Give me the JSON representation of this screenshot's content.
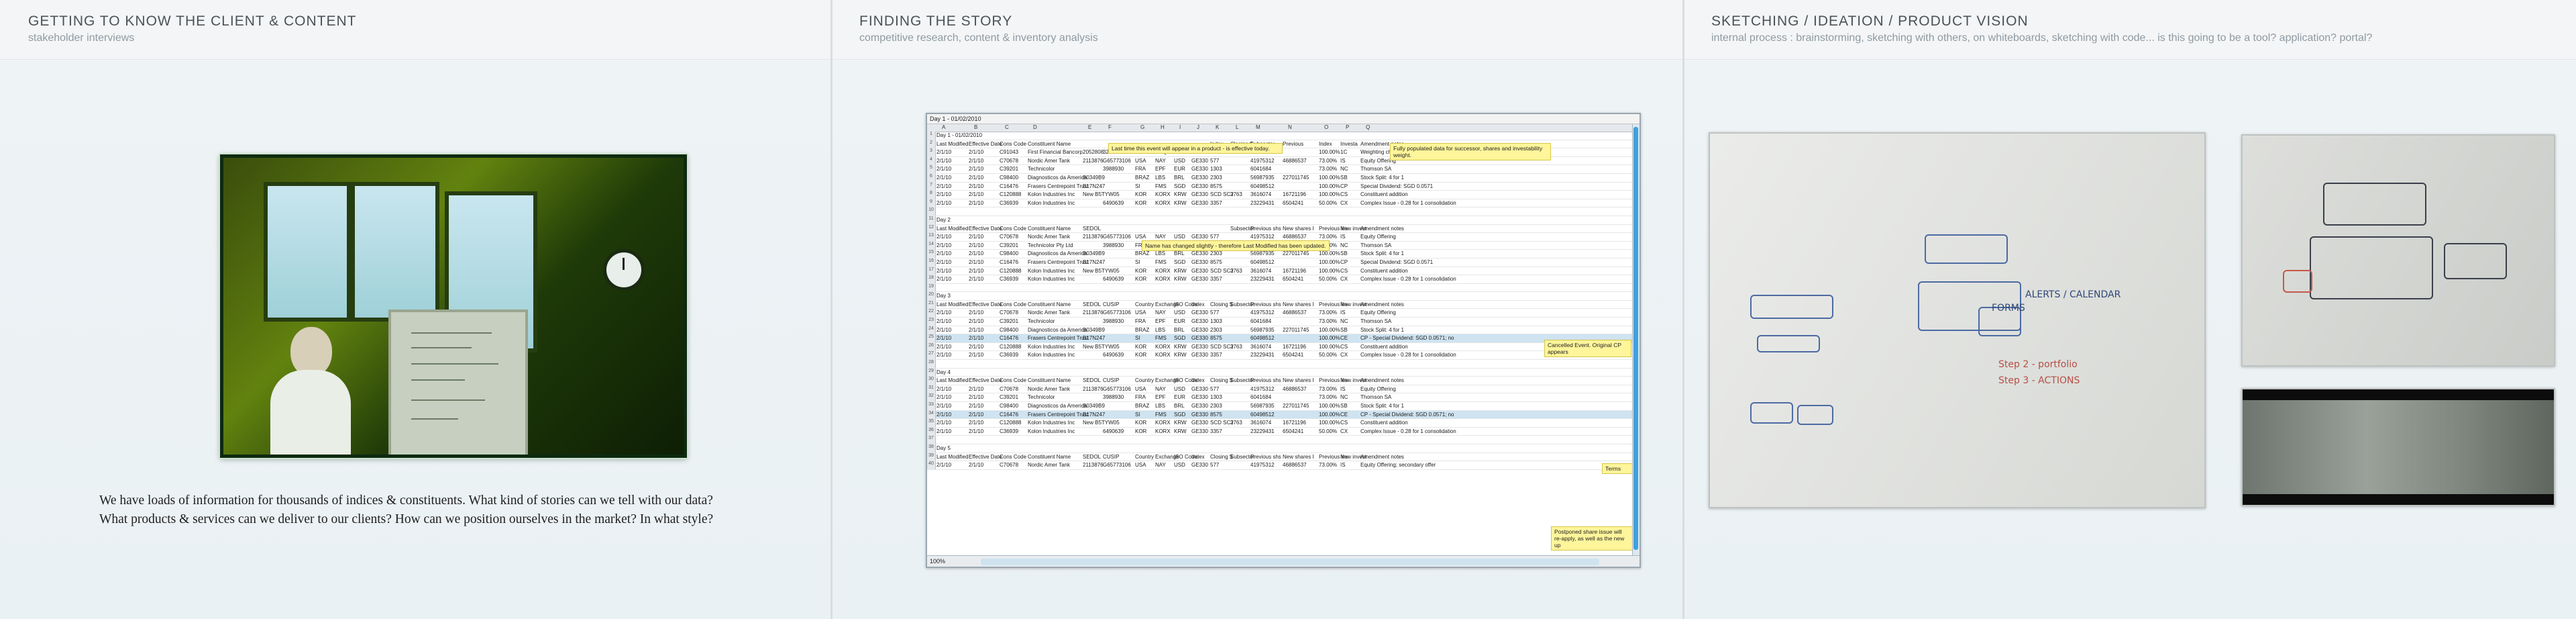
{
  "panels": [
    {
      "title": "GETTING TO KNOW THE CLIENT & CONTENT",
      "subtitle": "stakeholder interviews",
      "caption_lines": [
        "We have loads of information for thousands of indices & constituents. What kind of stories can we tell with our data?",
        "What products & services can we deliver to our clients? How can we position ourselves in the market? In what style?"
      ]
    },
    {
      "title": "FINDING THE STORY",
      "subtitle": "competitive research, content & inventory analysis"
    },
    {
      "title": "SKETCHING / IDEATION / PRODUCT VISION",
      "subtitle": "internal process : brainstorming, sketching with others, on whiteboards, sketching with code... is this going to be a tool? application? portal?"
    }
  ],
  "spreadsheet": {
    "window_title": "Day 1 - 01/02/2010",
    "columns": [
      "A",
      "B",
      "C",
      "D",
      "E",
      "F",
      "G",
      "H",
      "I",
      "J",
      "K",
      "L",
      "M",
      "N",
      "O",
      "P",
      "Q"
    ],
    "status": "100%",
    "notes": [
      "Last time this event will appear in a product - is effective today.",
      "Fully populated data for successor, shares and investability weight.",
      "Name has changed slightly - therefore Last Modified has been updated.",
      "Cancelled Event. Original CP appears",
      "Terms",
      "Postponed share issue will re-apply, as well as the new up"
    ],
    "rows": [
      {
        "n": "1",
        "cells": [
          "Day 1 - 01/02/2010"
        ]
      },
      {
        "n": "2",
        "cells": [
          "Last Modified",
          "Effective Date",
          "Cons Code",
          "Constituent Name",
          "",
          "",
          "",
          "",
          "",
          "",
          "Index",
          "Closing $",
          "Subsector",
          "Previous",
          "Index",
          "Investa",
          "Amendment notes"
        ]
      },
      {
        "n": "3",
        "cells": [
          "2/1/10",
          "2/1/10",
          "C91043",
          "First Financial Bancorp",
          "2052808",
          "320209109",
          "USA",
          "NAQ",
          "USD",
          "GE330",
          "103",
          "8.2525+09",
          "",
          "",
          "100.00%",
          "1C",
          "Weighting change"
        ]
      },
      {
        "n": "4",
        "cells": [
          "2/1/10",
          "2/1/10",
          "C70678",
          "Nordic Amer Tank",
          "2113876",
          "G65773106",
          "USA",
          "NAY",
          "USD",
          "GE330",
          "577",
          "",
          "41975312",
          "46886537",
          "73.00%",
          "IS",
          "Equity Offering"
        ]
      },
      {
        "n": "5",
        "cells": [
          "2/1/10",
          "2/1/10",
          "C39201",
          "Technicolor",
          "",
          "3988930",
          "FRA",
          "EPF",
          "EUR",
          "GE330",
          "1303",
          "",
          "6041684",
          "",
          "73.00%",
          "NC",
          "Thomson SA"
        ]
      },
      {
        "n": "6",
        "cells": [
          "2/1/10",
          "2/1/10",
          "C98400",
          "Diagnosticos da America",
          "B0349B9",
          "",
          "BRAZ",
          "LBS",
          "BRL",
          "GE330",
          "2303",
          "",
          "56987935",
          "227011745",
          "100.00%",
          "SB",
          "Stock Split: 4 for 1"
        ]
      },
      {
        "n": "7",
        "cells": [
          "2/1/10",
          "2/1/10",
          "C16476",
          "Frasers Centrepoint Trust",
          "B17N247",
          "",
          "SI",
          "FMS",
          "SGD",
          "GE330",
          "8575",
          "",
          "60498512",
          "",
          "100.00%",
          "CP",
          "Special Dividend: SGD 0.0571"
        ]
      },
      {
        "n": "8",
        "cells": [
          "2/1/10",
          "2/1/10",
          "C120888",
          "Kolon Industries Inc",
          "New B5TYW05",
          "",
          "KOR",
          "KORX",
          "KRW",
          "GE330",
          "SCD SC2",
          "3763",
          "3616074",
          "16721196",
          "100.00%",
          "CS",
          "Constituent addition"
        ]
      },
      {
        "n": "9",
        "cells": [
          "2/1/10",
          "2/1/10",
          "C36939",
          "Kolon Industries Inc",
          "",
          "6490639",
          "KOR",
          "KORX",
          "KRW",
          "GE330",
          "3357",
          "",
          "23229431",
          "6504241",
          "50.00%",
          "CX",
          "Complex Issue - 0.28 for 1 consolidation"
        ]
      },
      {
        "n": "10",
        "cells": []
      },
      {
        "n": "11",
        "cells": [
          "Day 2"
        ]
      },
      {
        "n": "12",
        "cells": [
          "Last Modified",
          "Effective Date",
          "Cons Code",
          "Constituent Name",
          "SEDOL",
          "",
          "",
          "",
          "",
          "",
          "",
          "Subsector",
          "Previous shs",
          "New shares I",
          "Previous inv",
          "New invest",
          "Amendment notes"
        ]
      },
      {
        "n": "13",
        "cells": [
          "2/1/10",
          "2/1/10",
          "C70678",
          "Nordic Amer Tank",
          "2113876",
          "G65773106",
          "USA",
          "NAY",
          "USD",
          "GE330",
          "577",
          "",
          "41975312",
          "46886537",
          "73.00%",
          "IS",
          "Equity Offering"
        ]
      },
      {
        "n": "14",
        "cells": [
          "2/1/10",
          "2/1/10",
          "C39201",
          "Technicolor Pty Ltd",
          "",
          "3988930",
          "FRA",
          "EPF",
          "EUR",
          "GE330",
          "1303",
          "",
          "6041684",
          "",
          "73.00%",
          "NC",
          "Thomson SA"
        ]
      },
      {
        "n": "15",
        "cells": [
          "2/1/10",
          "2/1/10",
          "C98400",
          "Diagnosticos da America",
          "B0349B9",
          "",
          "BRAZ",
          "LBS",
          "BRL",
          "GE330",
          "2303",
          "",
          "56987935",
          "227011745",
          "100.00%",
          "SB",
          "Stock Split: 4 for 1"
        ]
      },
      {
        "n": "16",
        "cells": [
          "2/1/10",
          "2/1/10",
          "C16476",
          "Frasers Centrepoint Trust",
          "B17N247",
          "",
          "SI",
          "FMS",
          "SGD",
          "GE330",
          "8575",
          "",
          "60498512",
          "",
          "100.00%",
          "CP",
          "Special Dividend: SGD 0.0571"
        ]
      },
      {
        "n": "17",
        "cells": [
          "2/1/10",
          "2/1/10",
          "C120888",
          "Kolon Industries Inc",
          "New B5TYW05",
          "",
          "KOR",
          "KORX",
          "KRW",
          "GE330",
          "SCD SC2",
          "3763",
          "3616074",
          "16721196",
          "100.00%",
          "CS",
          "Constituent addition"
        ]
      },
      {
        "n": "18",
        "cells": [
          "2/1/10",
          "2/1/10",
          "C36939",
          "Kolon Industries Inc",
          "",
          "6490639",
          "KOR",
          "KORX",
          "KRW",
          "GE330",
          "3357",
          "",
          "23229431",
          "6504241",
          "50.00%",
          "CX",
          "Complex Issue - 0.28 for 1 consolidation"
        ]
      },
      {
        "n": "19",
        "cells": []
      },
      {
        "n": "20",
        "cells": [
          "Day 3"
        ]
      },
      {
        "n": "21",
        "cells": [
          "Last Modified",
          "Effective Date",
          "Cons Code",
          "Constituent Name",
          "SEDOL",
          "CUSIP",
          "Country",
          "Exchange",
          "ISO Code",
          "Index",
          "Closing $",
          "Subsector",
          "Previous shs",
          "New shares I",
          "Previous inv",
          "New invest",
          "Amendment notes"
        ]
      },
      {
        "n": "22",
        "cells": [
          "2/1/10",
          "2/1/10",
          "C70678",
          "Nordic Amer Tank",
          "2113876",
          "G65773106",
          "USA",
          "NAY",
          "USD",
          "GE330",
          "577",
          "",
          "41975312",
          "46886537",
          "73.00%",
          "IS",
          "Equity Offering"
        ]
      },
      {
        "n": "23",
        "cells": [
          "2/1/10",
          "2/1/10",
          "C39201",
          "Technicolor",
          "",
          "3988930",
          "FRA",
          "EPF",
          "EUR",
          "GE330",
          "1303",
          "",
          "6041684",
          "",
          "73.00%",
          "NC",
          "Thomson SA"
        ]
      },
      {
        "n": "24",
        "cells": [
          "2/1/10",
          "2/1/10",
          "C98400",
          "Diagnosticos da America",
          "B0349B9",
          "",
          "BRAZ",
          "LBS",
          "BRL",
          "GE330",
          "2303",
          "",
          "56987935",
          "227011745",
          "100.00%",
          "SB",
          "Stock Split: 4 for 1"
        ]
      },
      {
        "n": "25",
        "hl": true,
        "cells": [
          "2/1/10",
          "2/1/10",
          "C16476",
          "Frasers Centrepoint Trust",
          "B17N247",
          "",
          "SI",
          "FMS",
          "SGD",
          "GE330",
          "8575",
          "",
          "60498512",
          "",
          "100.00%",
          "CE",
          "CP - Special Dividend: SGD 0.0571; no"
        ]
      },
      {
        "n": "26",
        "cells": [
          "2/1/10",
          "2/1/10",
          "C120888",
          "Kolon Industries Inc",
          "New B5TYW05",
          "",
          "KOR",
          "KORX",
          "KRW",
          "GE330",
          "SCD SC2",
          "3763",
          "3616074",
          "16721196",
          "100.00%",
          "CS",
          "Constituent addition"
        ]
      },
      {
        "n": "27",
        "cells": [
          "2/1/10",
          "2/1/10",
          "C36939",
          "Kolon Industries Inc",
          "",
          "6490639",
          "KOR",
          "KORX",
          "KRW",
          "GE330",
          "3357",
          "",
          "23229431",
          "6504241",
          "50.00%",
          "CX",
          "Complex Issue - 0.28 for 1 consolidation"
        ]
      },
      {
        "n": "28",
        "cells": []
      },
      {
        "n": "29",
        "cells": [
          "Day 4"
        ]
      },
      {
        "n": "30",
        "cells": [
          "Last Modified",
          "Effective Date",
          "Cons Code",
          "Constituent Name",
          "SEDOL",
          "CUSIP",
          "Country",
          "Exchange",
          "ISO Code",
          "Index",
          "Closing $",
          "Subsector",
          "Previous shs",
          "New shares I",
          "Previous inv",
          "New invest",
          "Amendment notes"
        ]
      },
      {
        "n": "31",
        "cells": [
          "2/1/10",
          "2/1/10",
          "C70678",
          "Nordic Amer Tank",
          "2113876",
          "G65773106",
          "USA",
          "NAY",
          "USD",
          "GE330",
          "577",
          "",
          "41975312",
          "46886537",
          "73.00%",
          "IS",
          "Equity Offering"
        ]
      },
      {
        "n": "32",
        "cells": [
          "2/1/10",
          "2/1/10",
          "C39201",
          "Technicolor",
          "",
          "3988930",
          "FRA",
          "EPF",
          "EUR",
          "GE330",
          "1303",
          "",
          "6041684",
          "",
          "73.00%",
          "NC",
          "Thomson SA"
        ]
      },
      {
        "n": "33",
        "cells": [
          "2/1/10",
          "2/1/10",
          "C98400",
          "Diagnosticos da America",
          "B0349B9",
          "",
          "BRAZ",
          "LBS",
          "BRL",
          "GE330",
          "2303",
          "",
          "56987935",
          "227011745",
          "100.00%",
          "SB",
          "Stock Split: 4 for 1"
        ]
      },
      {
        "n": "34",
        "hl": true,
        "cells": [
          "2/1/10",
          "2/1/10",
          "C16476",
          "Frasers Centrepoint Trust",
          "B17N247",
          "",
          "SI",
          "FMS",
          "SGD",
          "GE330",
          "8575",
          "",
          "60498512",
          "",
          "100.00%",
          "CE",
          "CP - Special Dividend: SGD 0.0571; no"
        ]
      },
      {
        "n": "35",
        "cells": [
          "2/1/10",
          "2/1/10",
          "C120888",
          "Kolon Industries Inc",
          "New B5TYW05",
          "",
          "KOR",
          "KORX",
          "KRW",
          "GE330",
          "SCD SC2",
          "3763",
          "3616074",
          "16721196",
          "100.00%",
          "CS",
          "Constituent addition"
        ]
      },
      {
        "n": "36",
        "cells": [
          "2/1/10",
          "2/1/10",
          "C36939",
          "Kolon Industries Inc",
          "",
          "6490639",
          "KOR",
          "KORX",
          "KRW",
          "GE330",
          "3357",
          "",
          "23229431",
          "6504241",
          "50.00%",
          "CX",
          "Complex Issue - 0.28 for 1 consolidation"
        ]
      },
      {
        "n": "37",
        "cells": []
      },
      {
        "n": "38",
        "cells": [
          "Day 5"
        ]
      },
      {
        "n": "39",
        "cells": [
          "Last Modified",
          "Effective Date",
          "Cons Code",
          "Constituent Name",
          "SEDOL",
          "CUSIP",
          "Country",
          "Exchange",
          "ISO Code",
          "Index",
          "Closing $",
          "Subsector",
          "Previous shs",
          "New shares I",
          "Previous inv",
          "New invest",
          "Amendment notes"
        ]
      },
      {
        "n": "40",
        "cells": [
          "2/1/10",
          "2/1/10",
          "C70678",
          "Nordic Amer Tank",
          "2113876",
          "G65773106",
          "USA",
          "NAY",
          "USD",
          "GE330",
          "577",
          "",
          "41975312",
          "46886537",
          "73.00%",
          "IS",
          "Equity Offering; secondary offer"
        ]
      }
    ]
  },
  "whiteboard": {
    "words": [
      "ALERTS / CALENDAR",
      "FORMS",
      "Step 2 - portfolio",
      "Step 3 - ACTIONS"
    ]
  }
}
